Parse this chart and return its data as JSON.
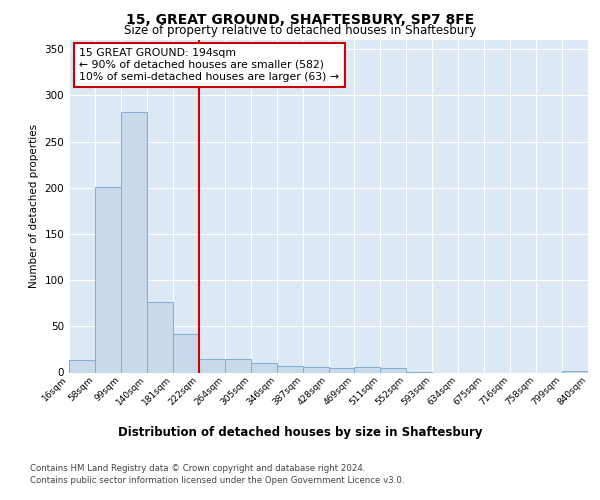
{
  "title1": "15, GREAT GROUND, SHAFTESBURY, SP7 8FE",
  "title2": "Size of property relative to detached houses in Shaftesbury",
  "xlabel": "Distribution of detached houses by size in Shaftesbury",
  "ylabel": "Number of detached properties",
  "footnote1": "Contains HM Land Registry data © Crown copyright and database right 2024.",
  "footnote2": "Contains public sector information licensed under the Open Government Licence v3.0.",
  "bin_labels": [
    "16sqm",
    "58sqm",
    "99sqm",
    "140sqm",
    "181sqm",
    "222sqm",
    "264sqm",
    "305sqm",
    "346sqm",
    "387sqm",
    "428sqm",
    "469sqm",
    "511sqm",
    "552sqm",
    "593sqm",
    "634sqm",
    "675sqm",
    "716sqm",
    "758sqm",
    "799sqm",
    "840sqm"
  ],
  "bar_values": [
    13,
    201,
    282,
    76,
    42,
    15,
    15,
    10,
    7,
    6,
    5,
    6,
    5,
    1,
    0,
    0,
    0,
    0,
    0,
    2
  ],
  "bar_color": "#c8d9eb",
  "bar_edge_color": "#7bafd4",
  "annotation_line1": "15 GREAT GROUND: 194sqm",
  "annotation_line2": "← 90% of detached houses are smaller (582)",
  "annotation_line3": "10% of semi-detached houses are larger (63) →",
  "ylim": [
    0,
    360
  ],
  "yticks": [
    0,
    50,
    100,
    150,
    200,
    250,
    300,
    350
  ],
  "bg_color": "#dce9f5",
  "grid_color": "#ffffff",
  "annotation_box_color": "#ffffff",
  "annotation_box_edge": "#cc0000",
  "red_line_color": "#cc0000",
  "red_line_bin_index": 5
}
